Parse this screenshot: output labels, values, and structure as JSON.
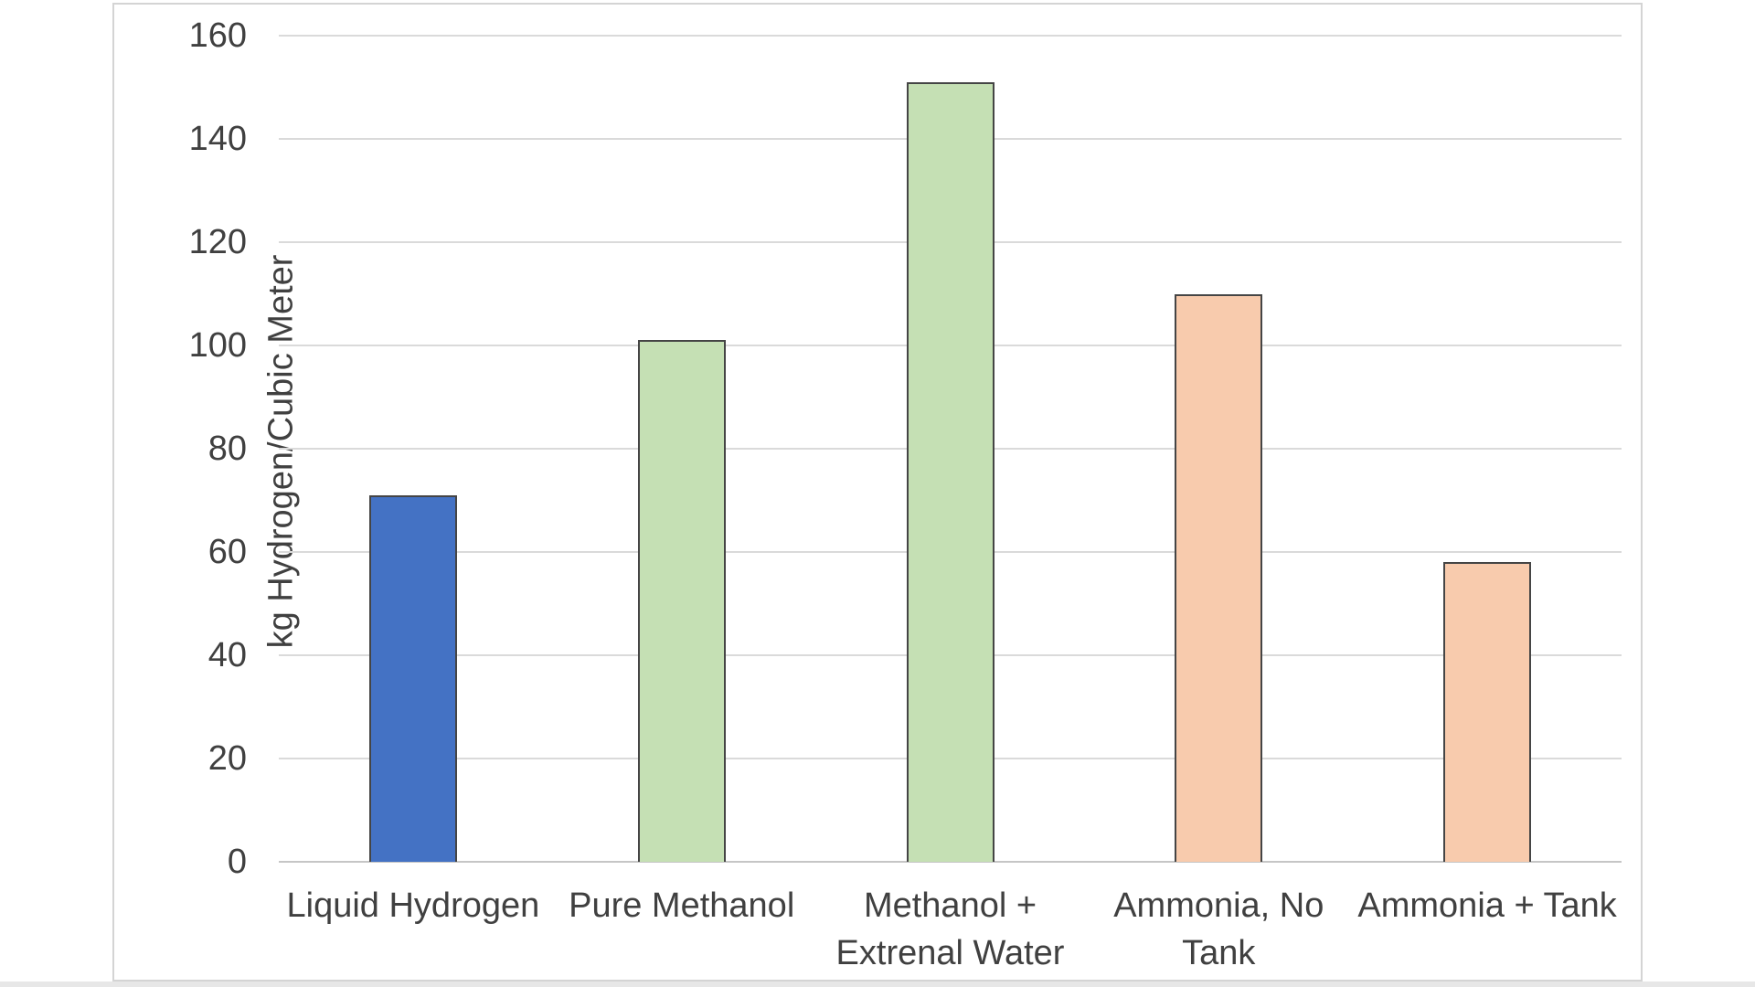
{
  "chart_data": {
    "type": "bar",
    "categories": [
      "Liquid Hydrogen",
      "Pure Methanol",
      "Methanol + Extrenal Water",
      "Ammonia, No Tank",
      "Ammonia + Tank"
    ],
    "values": [
      71,
      101,
      151,
      110,
      58
    ],
    "title": "",
    "xlabel": "",
    "ylabel": "kg Hydrogen/Cubic Meter",
    "ylim": [
      0,
      160
    ],
    "yticks": [
      0,
      20,
      40,
      60,
      80,
      100,
      120,
      140,
      160
    ],
    "grid": "horizontal-only",
    "legend": "none",
    "bar_colors": [
      "#4472C4",
      "#C5E0B4",
      "#C5E0B4",
      "#F8CBAD",
      "#F8CBAD"
    ],
    "bar_outline_color": "#454545",
    "text_color": "#404040",
    "gridline_color": "#dadada",
    "axis_line_color": "#c6c6c6",
    "canvas_border_color": "#d4d4d4",
    "bottom_strip_color": "#e7e7e7"
  }
}
